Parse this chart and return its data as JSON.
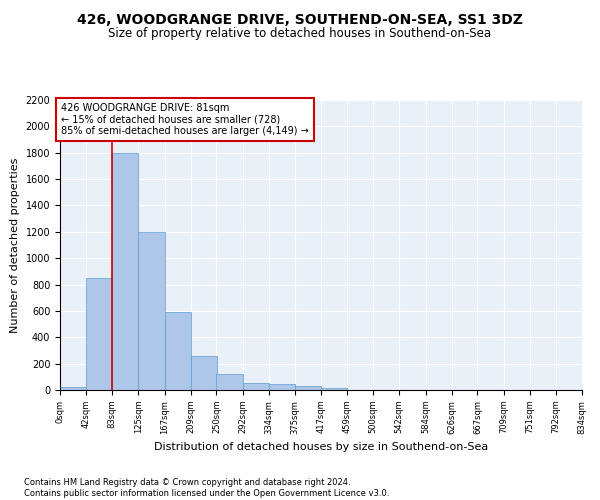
{
  "title": "426, WOODGRANGE DRIVE, SOUTHEND-ON-SEA, SS1 3DZ",
  "subtitle": "Size of property relative to detached houses in Southend-on-Sea",
  "xlabel": "Distribution of detached houses by size in Southend-on-Sea",
  "ylabel": "Number of detached properties",
  "bar_values": [
    25,
    850,
    1800,
    1200,
    590,
    260,
    125,
    50,
    45,
    30,
    18
  ],
  "bin_edges": [
    0,
    42,
    83,
    125,
    167,
    209,
    250,
    292,
    334,
    375,
    417,
    459,
    500,
    542,
    584,
    626,
    667,
    709,
    751,
    792,
    834
  ],
  "tick_labels": [
    "0sqm",
    "42sqm",
    "83sqm",
    "125sqm",
    "167sqm",
    "209sqm",
    "250sqm",
    "292sqm",
    "334sqm",
    "375sqm",
    "417sqm",
    "459sqm",
    "500sqm",
    "542sqm",
    "584sqm",
    "626sqm",
    "667sqm",
    "709sqm",
    "751sqm",
    "792sqm",
    "834sqm"
  ],
  "bar_color": "#aec6e8",
  "bar_edgecolor": "#5a9fd4",
  "vline_x": 83,
  "vline_color": "#cc0000",
  "annotation_text": "426 WOODGRANGE DRIVE: 81sqm\n← 15% of detached houses are smaller (728)\n85% of semi-detached houses are larger (4,149) →",
  "annotation_box_color": "#cc0000",
  "ylim": [
    0,
    2200
  ],
  "yticks": [
    0,
    200,
    400,
    600,
    800,
    1000,
    1200,
    1400,
    1600,
    1800,
    2000,
    2200
  ],
  "bg_color": "#eaf0f8",
  "footnote": "Contains HM Land Registry data © Crown copyright and database right 2024.\nContains public sector information licensed under the Open Government Licence v3.0.",
  "title_fontsize": 10,
  "subtitle_fontsize": 8.5,
  "xlabel_fontsize": 8,
  "ylabel_fontsize": 8,
  "footnote_fontsize": 6
}
